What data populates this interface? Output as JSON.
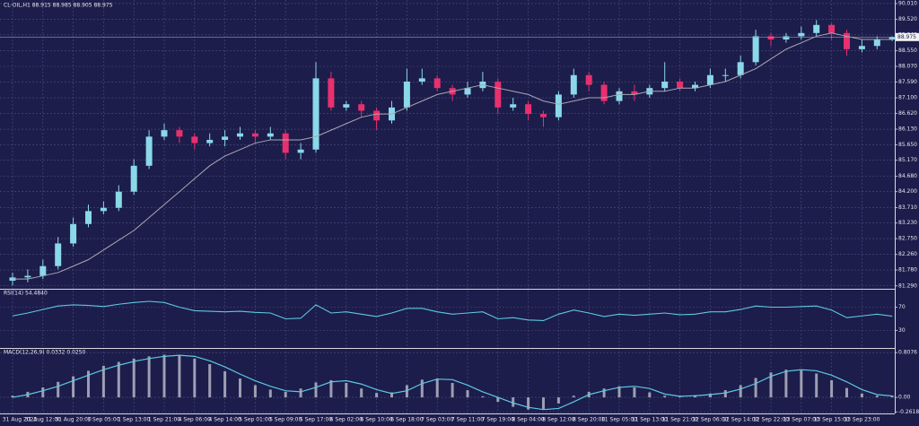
{
  "chart_data": [
    {
      "type": "candlestick",
      "title": "CL-OIL,H1 88.915 88.985 88.905 88.975",
      "categories": [
        "31 Aug 2023",
        null,
        "31 Aug 12:00",
        null,
        "31 Aug 20:00",
        null,
        "1 Sep 05:00",
        null,
        "1 Sep 13:00",
        null,
        "1 Sep 21:00",
        null,
        "4 Sep 06:00",
        null,
        "4 Sep 14:00",
        null,
        "5 Sep 01:00",
        null,
        "5 Sep 09:00",
        null,
        "5 Sep 17:00",
        null,
        "6 Sep 02:00",
        null,
        "6 Sep 10:00",
        null,
        "6 Sep 18:00",
        null,
        "7 Sep 03:00",
        null,
        "7 Sep 11:00",
        null,
        "7 Sep 19:00",
        null,
        "8 Sep 04:00",
        null,
        "8 Sep 12:00",
        null,
        "8 Sep 20:00",
        null,
        "11 Sep 05:00",
        null,
        "11 Sep 13:00",
        null,
        "11 Sep 21:00",
        null,
        "12 Sep 06:00",
        null,
        "12 Sep 14:00",
        null,
        "12 Sep 22:00",
        null,
        "13 Sep 07:00",
        null,
        "13 Sep 15:00",
        null,
        "13 Sep 23:00",
        null,
        null
      ],
      "open": [
        81.45,
        81.55,
        81.6,
        81.9,
        82.6,
        83.2,
        83.6,
        83.7,
        84.2,
        85.0,
        85.9,
        86.1,
        85.9,
        85.7,
        85.8,
        85.9,
        86.0,
        85.9,
        86.0,
        85.4,
        85.5,
        87.7,
        86.8,
        86.9,
        86.7,
        86.4,
        86.8,
        87.6,
        87.7,
        87.4,
        87.2,
        87.4,
        87.6,
        86.8,
        86.9,
        86.6,
        86.5,
        87.2,
        87.8,
        87.5,
        87.0,
        87.3,
        87.2,
        87.4,
        87.6,
        87.4,
        87.5,
        87.8,
        87.8,
        88.2,
        89.0,
        88.9,
        89.0,
        89.1,
        89.35,
        89.1,
        88.6,
        88.7,
        88.9
      ],
      "high": [
        81.7,
        81.8,
        82.1,
        82.8,
        83.4,
        83.8,
        83.9,
        84.4,
        85.2,
        86.1,
        86.3,
        86.2,
        86.0,
        86.0,
        86.1,
        86.2,
        86.1,
        86.2,
        86.1,
        85.7,
        88.2,
        87.9,
        87.0,
        87.0,
        86.8,
        87.0,
        88.0,
        88.0,
        87.8,
        87.5,
        87.6,
        87.9,
        87.7,
        87.1,
        87.0,
        86.7,
        87.3,
        88.0,
        87.9,
        87.6,
        87.4,
        87.5,
        87.5,
        88.2,
        87.7,
        87.6,
        88.0,
        88.0,
        88.4,
        89.2,
        89.1,
        89.1,
        89.3,
        89.5,
        89.4,
        89.2,
        88.9,
        89.0,
        89.0
      ],
      "low": [
        81.3,
        81.4,
        81.5,
        81.8,
        82.5,
        83.1,
        83.5,
        83.6,
        84.1,
        84.9,
        85.8,
        85.7,
        85.5,
        85.6,
        85.6,
        85.8,
        85.7,
        85.8,
        85.2,
        85.2,
        85.4,
        86.7,
        86.7,
        86.5,
        86.1,
        86.3,
        86.7,
        87.5,
        87.3,
        87.0,
        87.1,
        87.3,
        86.6,
        86.7,
        86.4,
        86.2,
        86.4,
        87.1,
        87.3,
        86.9,
        86.9,
        87.0,
        87.1,
        87.3,
        87.3,
        87.3,
        87.4,
        87.6,
        87.7,
        88.1,
        88.7,
        88.8,
        88.9,
        89.0,
        88.9,
        88.4,
        88.5,
        88.6,
        88.85
      ],
      "close": [
        81.55,
        81.6,
        81.9,
        82.6,
        83.2,
        83.6,
        83.7,
        84.2,
        85.0,
        85.9,
        86.1,
        85.9,
        85.7,
        85.8,
        85.9,
        86.0,
        85.9,
        86.0,
        85.4,
        85.5,
        87.7,
        86.8,
        86.9,
        86.7,
        86.4,
        86.8,
        87.6,
        87.7,
        87.4,
        87.2,
        87.4,
        87.6,
        86.8,
        86.9,
        86.6,
        86.5,
        87.2,
        87.8,
        87.5,
        87.0,
        87.3,
        87.2,
        87.4,
        87.6,
        87.4,
        87.5,
        87.8,
        87.8,
        88.2,
        89.0,
        88.9,
        89.0,
        89.1,
        89.35,
        89.1,
        88.6,
        88.7,
        88.9,
        88.975
      ],
      "up_color": "#8ad8e8",
      "down_color": "#e8306e",
      "ma_values": [
        81.5,
        81.5,
        81.6,
        81.7,
        81.9,
        82.1,
        82.4,
        82.7,
        83.0,
        83.4,
        83.8,
        84.2,
        84.6,
        85.0,
        85.3,
        85.5,
        85.7,
        85.8,
        85.8,
        85.8,
        85.9,
        86.1,
        86.3,
        86.5,
        86.6,
        86.6,
        86.8,
        87.0,
        87.2,
        87.3,
        87.4,
        87.5,
        87.4,
        87.3,
        87.2,
        87.0,
        86.9,
        87.0,
        87.1,
        87.1,
        87.2,
        87.2,
        87.3,
        87.3,
        87.4,
        87.4,
        87.5,
        87.6,
        87.8,
        88.0,
        88.3,
        88.6,
        88.8,
        89.0,
        89.1,
        89.0,
        88.9,
        88.9,
        88.9
      ],
      "ma_color": "#a8a8b4",
      "last_price": 88.975,
      "ylim": [
        81.2,
        90.12
      ],
      "yticks": [
        {
          "value": 90.01,
          "label": "90.010"
        },
        {
          "value": 89.52,
          "label": "89.520"
        },
        {
          "value": 89.04,
          "label": "89.040"
        },
        {
          "value": 88.55,
          "label": "88.550"
        },
        {
          "value": 88.07,
          "label": "88.070"
        },
        {
          "value": 87.59,
          "label": "87.590"
        },
        {
          "value": 87.1,
          "label": "87.100"
        },
        {
          "value": 86.62,
          "label": "86.620"
        },
        {
          "value": 86.13,
          "label": "86.130"
        },
        {
          "value": 85.65,
          "label": "85.650"
        },
        {
          "value": 85.17,
          "label": "85.170"
        },
        {
          "value": 84.68,
          "label": "84.680"
        },
        {
          "value": 84.2,
          "label": "84.200"
        },
        {
          "value": 83.71,
          "label": "83.710"
        },
        {
          "value": 83.23,
          "label": "83.230"
        },
        {
          "value": 82.75,
          "label": "82.750"
        },
        {
          "value": 82.26,
          "label": "82.260"
        },
        {
          "value": 81.78,
          "label": "81.780"
        },
        {
          "value": 81.29,
          "label": "81.290"
        }
      ],
      "grid": true
    },
    {
      "type": "line",
      "title": "RSI(14) 54.4840",
      "values": [
        55,
        60,
        66,
        72,
        74,
        73,
        71,
        75,
        78,
        80,
        78,
        70,
        64,
        63,
        62,
        63,
        61,
        60,
        50,
        51,
        74,
        60,
        62,
        58,
        54,
        60,
        68,
        68,
        62,
        58,
        60,
        62,
        50,
        52,
        48,
        47,
        58,
        65,
        60,
        54,
        58,
        56,
        58,
        60,
        57,
        58,
        62,
        62,
        66,
        72,
        70,
        70,
        71,
        72,
        65,
        52,
        55,
        58,
        54.484
      ],
      "color": "#5ec8e0",
      "ylim": [
        0,
        100
      ],
      "yticks": [
        70,
        30
      ]
    },
    {
      "type": "macd",
      "title": "MACD(12,26,9) 0.0332 0.0250",
      "histogram": [
        0.03,
        0.1,
        0.18,
        0.28,
        0.38,
        0.48,
        0.57,
        0.64,
        0.7,
        0.74,
        0.77,
        0.76,
        0.7,
        0.6,
        0.47,
        0.34,
        0.22,
        0.14,
        0.1,
        0.16,
        0.27,
        0.31,
        0.26,
        0.16,
        0.08,
        0.09,
        0.22,
        0.32,
        0.34,
        0.26,
        0.13,
        0.02,
        -0.08,
        -0.17,
        -0.22,
        -0.21,
        -0.11,
        0.03,
        0.1,
        0.16,
        0.2,
        0.18,
        0.09,
        0.03,
        0.02,
        0.04,
        0.07,
        0.13,
        0.22,
        0.35,
        0.45,
        0.5,
        0.49,
        0.43,
        0.31,
        0.17,
        0.07,
        0.03,
        0.0332
      ],
      "signal": [
        0.0,
        0.05,
        0.12,
        0.2,
        0.3,
        0.4,
        0.5,
        0.58,
        0.65,
        0.7,
        0.74,
        0.76,
        0.74,
        0.66,
        0.55,
        0.42,
        0.3,
        0.2,
        0.12,
        0.1,
        0.18,
        0.28,
        0.3,
        0.24,
        0.14,
        0.07,
        0.12,
        0.25,
        0.33,
        0.32,
        0.22,
        0.1,
        0.0,
        -0.1,
        -0.18,
        -0.22,
        -0.2,
        -0.08,
        0.05,
        0.12,
        0.18,
        0.2,
        0.16,
        0.06,
        0.02,
        0.03,
        0.05,
        0.08,
        0.15,
        0.25,
        0.38,
        0.47,
        0.5,
        0.48,
        0.4,
        0.28,
        0.14,
        0.05,
        0.025
      ],
      "hist_color": "#c8c8d4",
      "signal_color": "#5ec8e0",
      "ylim": [
        -0.29,
        0.875
      ],
      "yticks": [
        0.8076,
        {
          "value": 0,
          "label": "0.00"
        },
        -0.2618
      ]
    }
  ]
}
